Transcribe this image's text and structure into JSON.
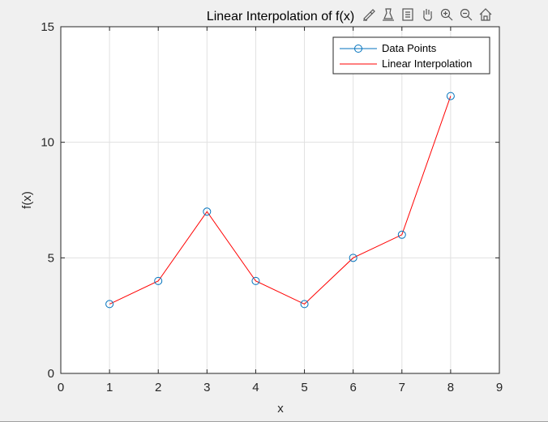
{
  "window": {
    "background_color": "#f0f0f0"
  },
  "toolbar": {
    "buttons": [
      {
        "name": "brush-button",
        "icon": "brush-icon"
      },
      {
        "name": "data-tips-button",
        "icon": "data-tips-icon"
      },
      {
        "name": "legend-toggle-button",
        "icon": "legend-icon"
      },
      {
        "name": "pan-button",
        "icon": "hand-icon"
      },
      {
        "name": "zoom-in-button",
        "icon": "zoom-in-icon"
      },
      {
        "name": "zoom-out-button",
        "icon": "zoom-out-icon"
      },
      {
        "name": "home-button",
        "icon": "home-icon"
      }
    ]
  },
  "chart_data": {
    "type": "line",
    "title": "Linear Interpolation of f(x)",
    "xlabel": "x",
    "ylabel": "f(x)",
    "xlim": [
      0,
      9
    ],
    "ylim": [
      0,
      15
    ],
    "xticks": [
      "0",
      "1",
      "2",
      "3",
      "4",
      "5",
      "6",
      "7",
      "8",
      "9"
    ],
    "yticks": [
      "0",
      "5",
      "10",
      "15"
    ],
    "grid": true,
    "legend_location": "top-right",
    "series": [
      {
        "name": "Data Points",
        "style": "markers",
        "marker": "circle",
        "color": "#0072bd",
        "x": [
          1,
          2,
          3,
          4,
          5,
          6,
          7,
          8
        ],
        "y": [
          3,
          4,
          7,
          4,
          3,
          5,
          6,
          12
        ]
      },
      {
        "name": "Linear Interpolation",
        "style": "line",
        "color": "#ff0000",
        "x": [
          1,
          2,
          3,
          4,
          5,
          6,
          7,
          8
        ],
        "y": [
          3,
          4,
          7,
          4,
          3,
          5,
          6,
          12
        ]
      }
    ]
  }
}
